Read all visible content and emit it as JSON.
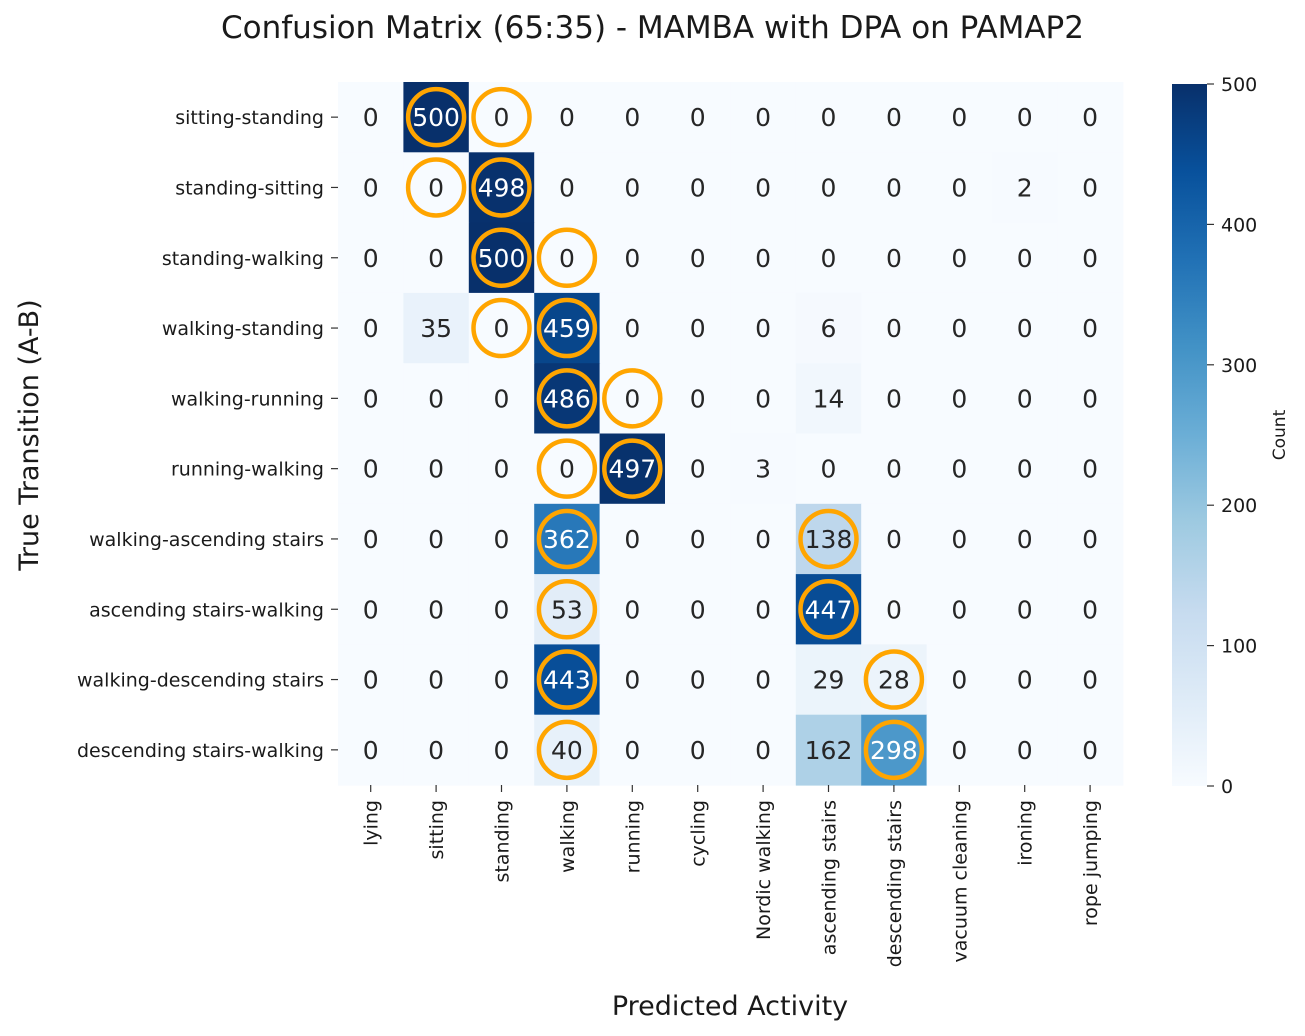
{
  "chart_data": {
    "type": "heatmap",
    "title": "Confusion Matrix (65:35) - MAMBA with DPA on PAMAP2",
    "xlabel": "Predicted Activity",
    "ylabel": "True Transition (A-B)",
    "colorbar_label": "Count",
    "colorbar_ticks": [
      0,
      100,
      200,
      300,
      400,
      500
    ],
    "vmin": 0,
    "vmax": 500,
    "colormap": "Blues",
    "highlight_color": "#FFA500",
    "x_categories": [
      "lying",
      "sitting",
      "standing",
      "walking",
      "running",
      "cycling",
      "Nordic walking",
      "ascending stairs",
      "descending stairs",
      "vacuum cleaning",
      "ironing",
      "rope jumping"
    ],
    "y_categories": [
      "sitting-standing",
      "standing-sitting",
      "standing-walking",
      "walking-standing",
      "walking-running",
      "running-walking",
      "walking-ascending stairs",
      "ascending stairs-walking",
      "walking-descending stairs",
      "descending stairs-walking"
    ],
    "values": [
      [
        0,
        500,
        0,
        0,
        0,
        0,
        0,
        0,
        0,
        0,
        0,
        0
      ],
      [
        0,
        0,
        498,
        0,
        0,
        0,
        0,
        0,
        0,
        0,
        2,
        0
      ],
      [
        0,
        0,
        500,
        0,
        0,
        0,
        0,
        0,
        0,
        0,
        0,
        0
      ],
      [
        0,
        35,
        0,
        459,
        0,
        0,
        0,
        6,
        0,
        0,
        0,
        0
      ],
      [
        0,
        0,
        0,
        486,
        0,
        0,
        0,
        14,
        0,
        0,
        0,
        0
      ],
      [
        0,
        0,
        0,
        0,
        497,
        0,
        3,
        0,
        0,
        0,
        0,
        0
      ],
      [
        0,
        0,
        0,
        362,
        0,
        0,
        0,
        138,
        0,
        0,
        0,
        0
      ],
      [
        0,
        0,
        0,
        53,
        0,
        0,
        0,
        447,
        0,
        0,
        0,
        0
      ],
      [
        0,
        0,
        0,
        443,
        0,
        0,
        0,
        29,
        28,
        0,
        0,
        0
      ],
      [
        0,
        0,
        0,
        40,
        0,
        0,
        0,
        162,
        298,
        0,
        0,
        0
      ]
    ],
    "highlighted_cells": [
      [
        0,
        1
      ],
      [
        0,
        2
      ],
      [
        1,
        1
      ],
      [
        1,
        2
      ],
      [
        2,
        2
      ],
      [
        2,
        3
      ],
      [
        3,
        2
      ],
      [
        3,
        3
      ],
      [
        4,
        3
      ],
      [
        4,
        4
      ],
      [
        5,
        3
      ],
      [
        5,
        4
      ],
      [
        6,
        3
      ],
      [
        6,
        7
      ],
      [
        7,
        3
      ],
      [
        7,
        7
      ],
      [
        8,
        3
      ],
      [
        8,
        8
      ],
      [
        9,
        3
      ],
      [
        9,
        8
      ]
    ]
  }
}
